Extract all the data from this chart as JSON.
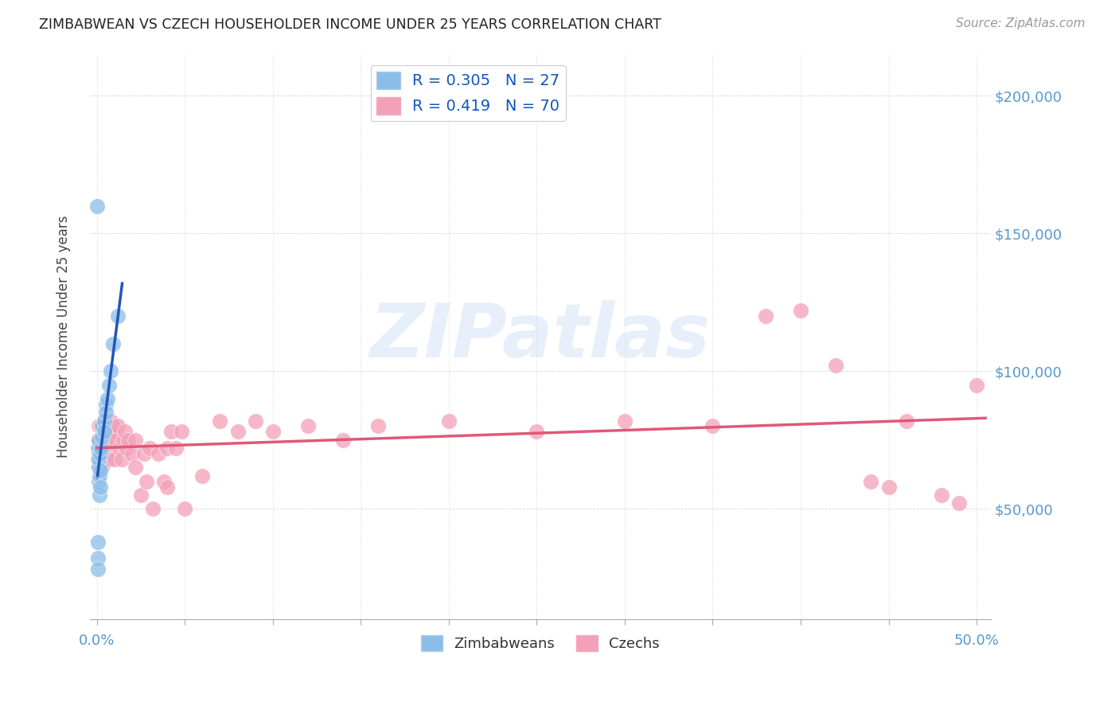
{
  "title": "ZIMBABWEAN VS CZECH HOUSEHOLDER INCOME UNDER 25 YEARS CORRELATION CHART",
  "source": "Source: ZipAtlas.com",
  "ylabel": "Householder Income Under 25 years",
  "xlim": [
    -0.004,
    0.508
  ],
  "ylim": [
    10000,
    215000
  ],
  "blue_color": "#8bbde8",
  "pink_color": "#f4a0b8",
  "blue_line_color": "#2255bb",
  "blue_dash_color": "#88aadd",
  "pink_line_color": "#e05878",
  "watermark_color": "#c8ddf5",
  "legend_r1": "R = 0.305   N = 27",
  "legend_r2": "R = 0.419   N = 70",
  "tick_color": "#5599cc",
  "zimbabwean_x": [
    0.0005,
    0.0005,
    0.0008,
    0.001,
    0.001,
    0.001,
    0.001,
    0.0012,
    0.0012,
    0.0015,
    0.0015,
    0.002,
    0.002,
    0.002,
    0.0025,
    0.003,
    0.003,
    0.004,
    0.004,
    0.005,
    0.005,
    0.006,
    0.007,
    0.008,
    0.009,
    0.012,
    0.0003
  ],
  "zimbabwean_y": [
    32000,
    38000,
    28000,
    65000,
    70000,
    72000,
    75000,
    60000,
    68000,
    55000,
    62000,
    58000,
    64000,
    70000,
    72000,
    76000,
    80000,
    82000,
    78000,
    88000,
    85000,
    90000,
    95000,
    100000,
    110000,
    120000,
    160000
  ],
  "czech_x": [
    0.0005,
    0.0008,
    0.001,
    0.001,
    0.001,
    0.0015,
    0.002,
    0.002,
    0.002,
    0.003,
    0.003,
    0.003,
    0.004,
    0.004,
    0.005,
    0.005,
    0.006,
    0.006,
    0.007,
    0.007,
    0.008,
    0.008,
    0.009,
    0.01,
    0.01,
    0.011,
    0.012,
    0.013,
    0.014,
    0.015,
    0.016,
    0.017,
    0.018,
    0.02,
    0.022,
    0.022,
    0.025,
    0.027,
    0.028,
    0.03,
    0.032,
    0.035,
    0.038,
    0.04,
    0.04,
    0.042,
    0.045,
    0.048,
    0.05,
    0.06,
    0.07,
    0.08,
    0.09,
    0.1,
    0.12,
    0.14,
    0.16,
    0.2,
    0.25,
    0.3,
    0.35,
    0.38,
    0.4,
    0.42,
    0.44,
    0.45,
    0.46,
    0.48,
    0.49,
    0.5
  ],
  "czech_y": [
    68000,
    72000,
    75000,
    80000,
    65000,
    70000,
    75000,
    68000,
    80000,
    72000,
    65000,
    80000,
    82000,
    75000,
    78000,
    68000,
    82000,
    72000,
    78000,
    68000,
    82000,
    75000,
    80000,
    78000,
    68000,
    75000,
    80000,
    72000,
    68000,
    75000,
    78000,
    72000,
    75000,
    70000,
    65000,
    75000,
    55000,
    70000,
    60000,
    72000,
    50000,
    70000,
    60000,
    72000,
    58000,
    78000,
    72000,
    78000,
    50000,
    62000,
    82000,
    78000,
    82000,
    78000,
    80000,
    75000,
    80000,
    82000,
    78000,
    82000,
    80000,
    120000,
    122000,
    102000,
    60000,
    58000,
    82000,
    55000,
    52000,
    95000
  ]
}
